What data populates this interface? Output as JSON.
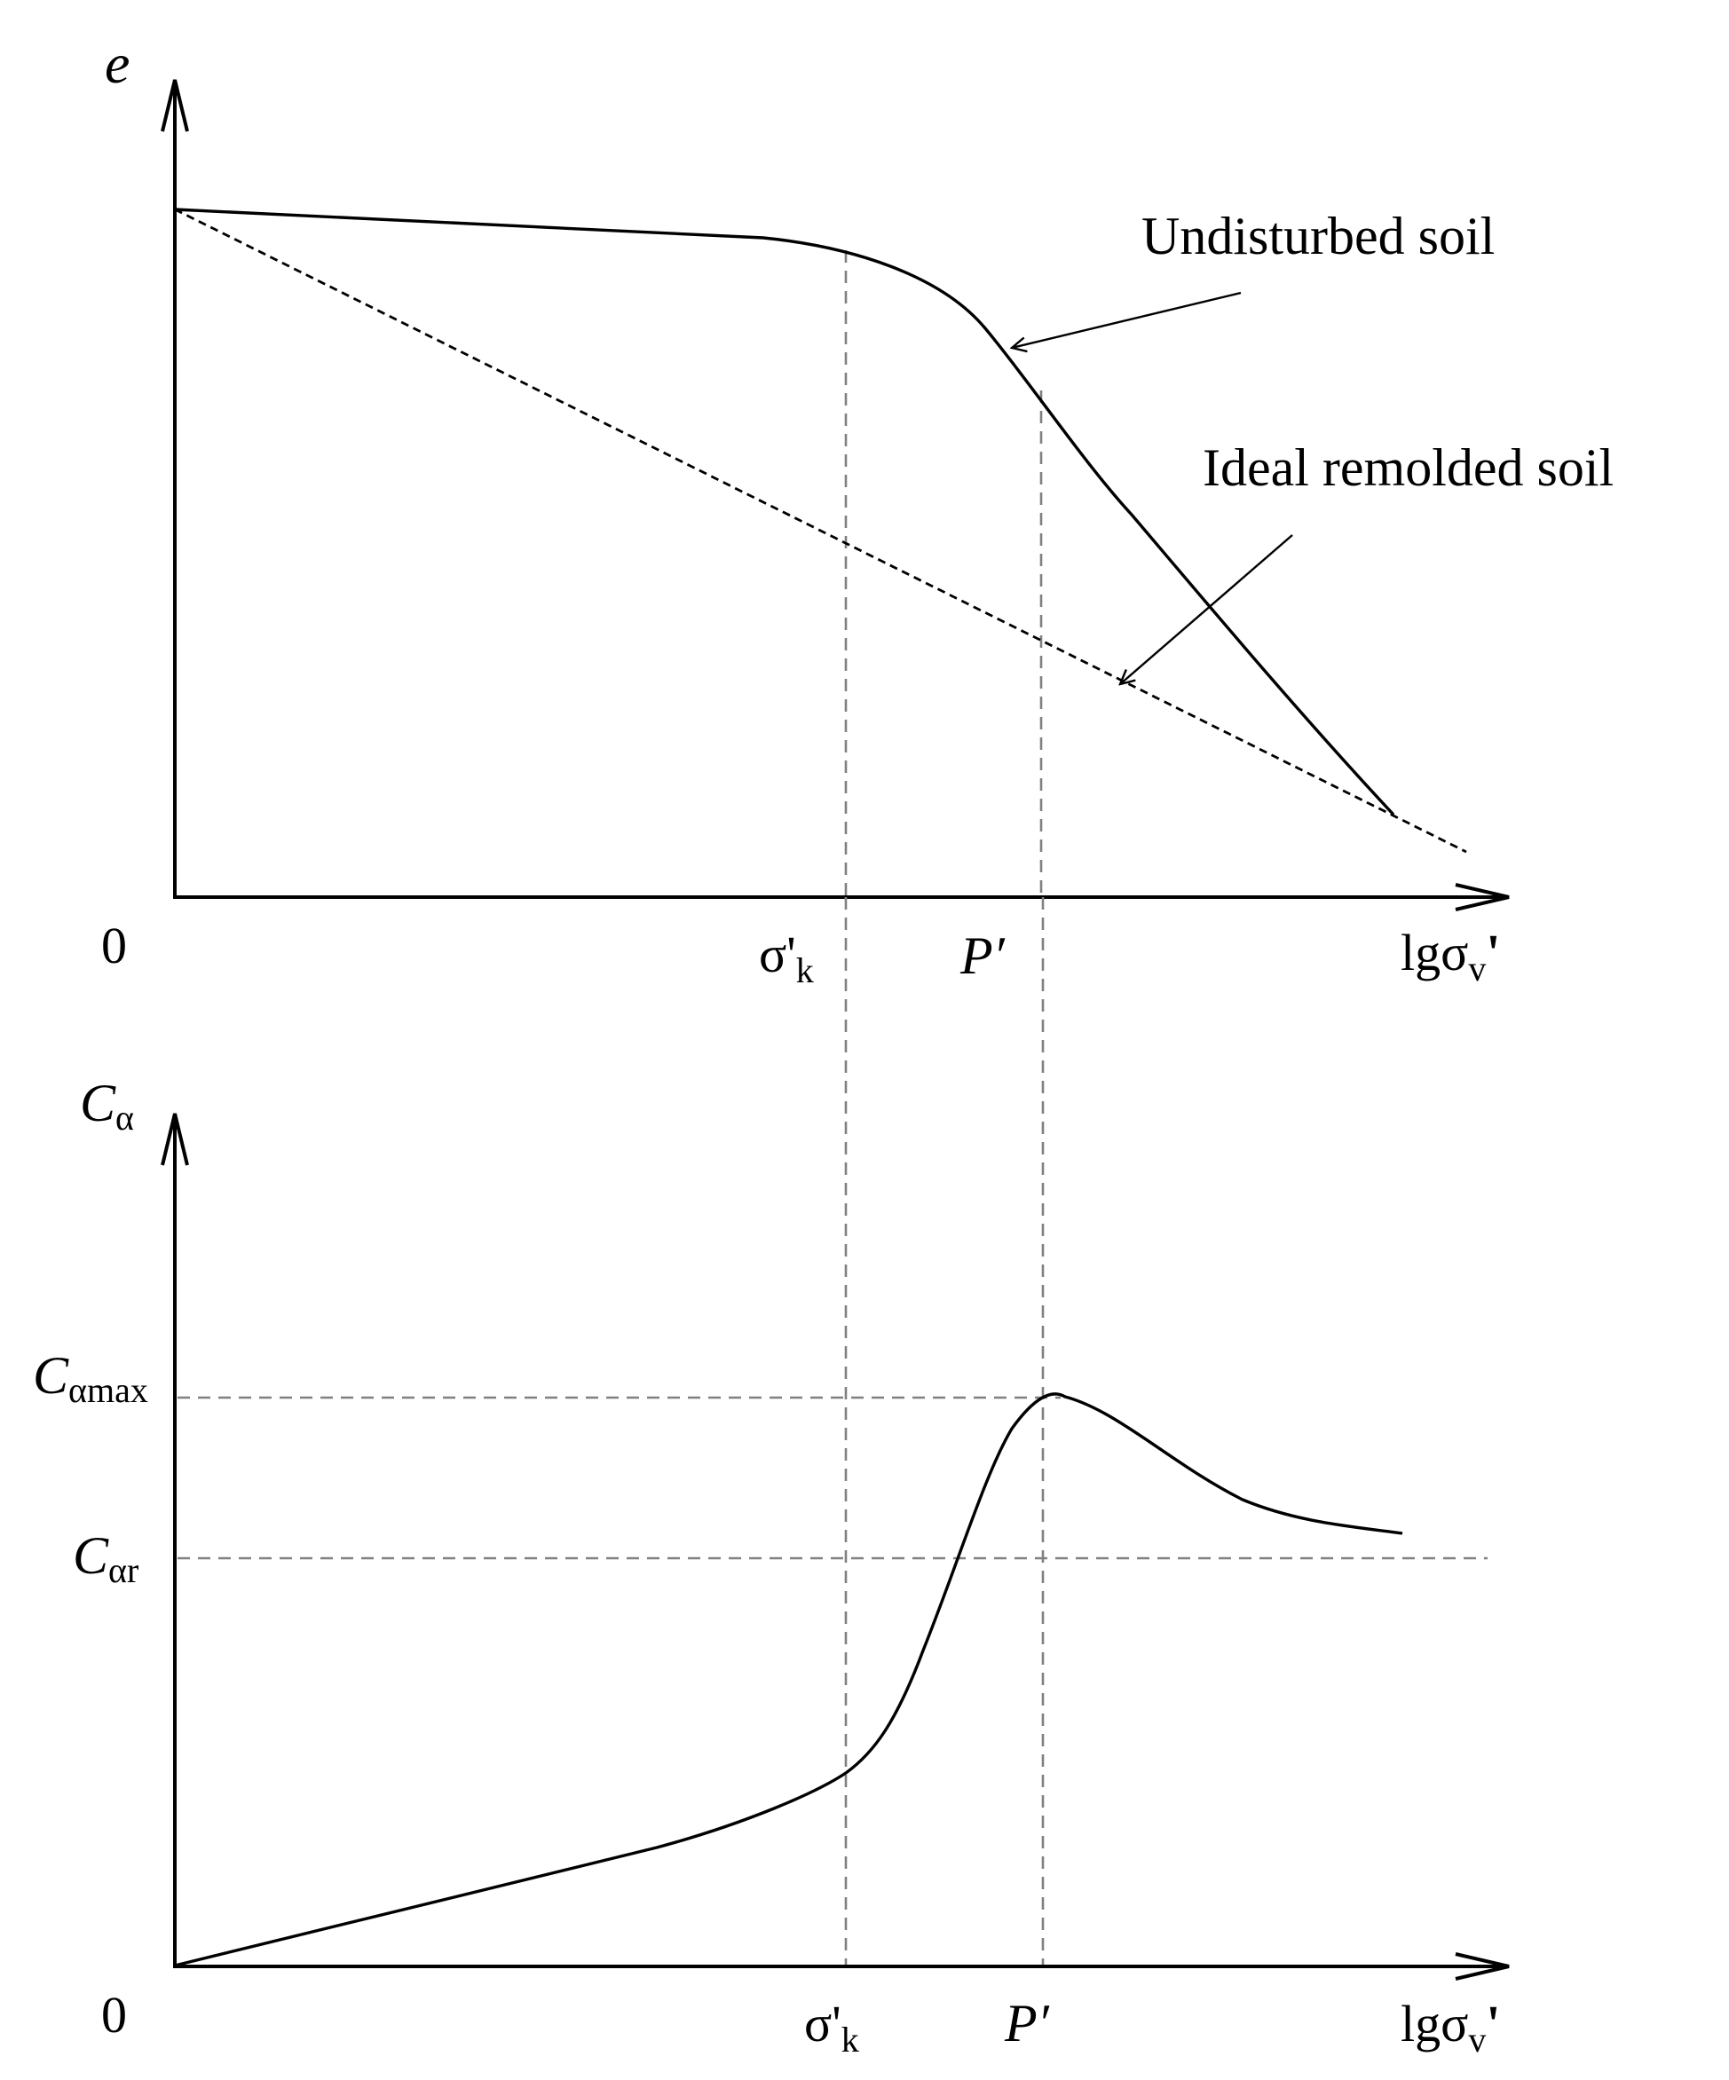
{
  "colors": {
    "ink": "#000000",
    "guide_dash": "#808080",
    "background": "#ffffff"
  },
  "top_panel": {
    "y_axis_label": "e",
    "origin_label": "0",
    "x_axis_label": {
      "base": "lgσ",
      "subscript": "v",
      "suffix": "'"
    },
    "tick_sigma_k": {
      "base": "σ'",
      "subscript": "k"
    },
    "tick_p": "P′",
    "curves": [
      {
        "label": "Undisturbed soil",
        "style": "solid"
      },
      {
        "label": "Ideal remolded soil",
        "style": "dashed"
      }
    ]
  },
  "bottom_panel": {
    "y_axis_label": {
      "base": "C",
      "subscript": "α"
    },
    "origin_label": "0",
    "x_axis_label": {
      "base": "lgσ",
      "subscript": "v",
      "suffix": "'"
    },
    "tick_sigma_k": {
      "base": "σ'",
      "subscript": "k"
    },
    "tick_p": "P′",
    "y_tick_max": {
      "base": "C",
      "subscript": "αmax"
    },
    "y_tick_r": {
      "base": "C",
      "subscript": "αr"
    }
  }
}
